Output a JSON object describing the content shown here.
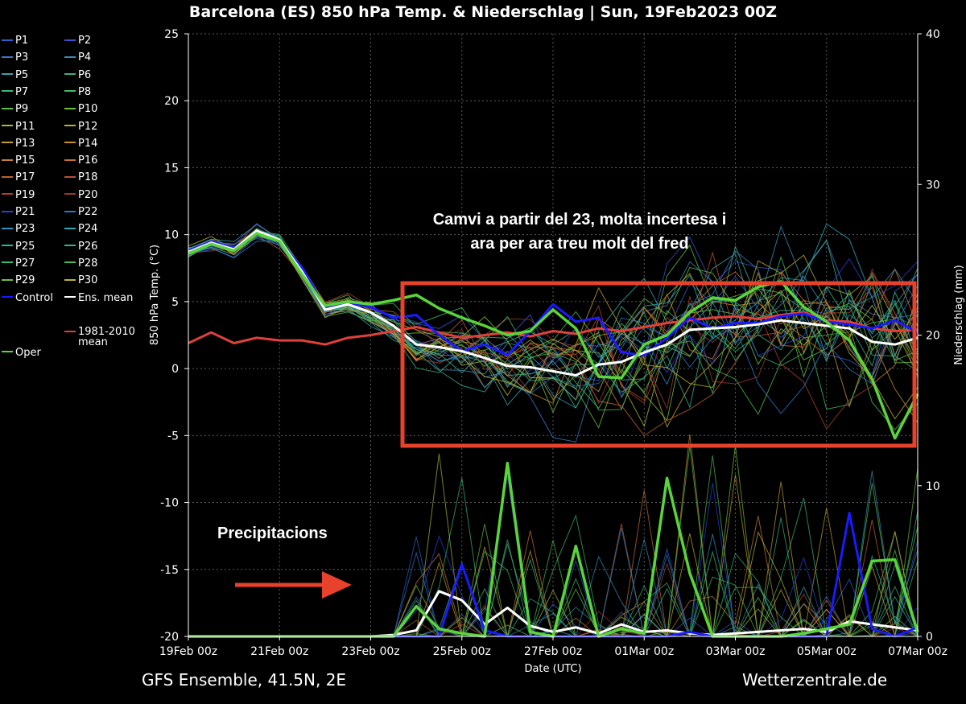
{
  "title": "Barcelona  (ES)  850 hPa Temp. & Niederschlag | Sun, 19Feb2023 00Z",
  "footer_left": "GFS Ensemble, 41.5N, 2E",
  "footer_right": "Wetterzentrale.de",
  "annotation_main": [
    "Camvi a partir del 23, molta incertesa i",
    "ara per ara treu molt del fred"
  ],
  "annotation_precip": "Precipitacions",
  "colors": {
    "background": "#000000",
    "axis": "#ffffff",
    "control": "#1a1aff",
    "ens_mean": "#ffffff",
    "climate_mean": "#e0403a",
    "oper": "#5ad43a",
    "annotation_box": "#e8412c",
    "annotation_arrow": "#e8412c"
  },
  "legend": [
    {
      "label": "P1",
      "color": "#2c5fd0"
    },
    {
      "label": "P2",
      "color": "#3a52c8"
    },
    {
      "label": "P3",
      "color": "#3a78c8"
    },
    {
      "label": "P4",
      "color": "#3a8cb4"
    },
    {
      "label": "P5",
      "color": "#3aa0a8"
    },
    {
      "label": "P6",
      "color": "#3ab08c"
    },
    {
      "label": "P7",
      "color": "#3ab878"
    },
    {
      "label": "P8",
      "color": "#48bc5c"
    },
    {
      "label": "P9",
      "color": "#5ac048"
    },
    {
      "label": "P10",
      "color": "#6cc040"
    },
    {
      "label": "P11",
      "color": "#a8b838"
    },
    {
      "label": "P12",
      "color": "#b8b030"
    },
    {
      "label": "P13",
      "color": "#c0a030"
    },
    {
      "label": "P14",
      "color": "#c89030"
    },
    {
      "label": "P15",
      "color": "#c88030"
    },
    {
      "label": "P16",
      "color": "#c87030"
    },
    {
      "label": "P17",
      "color": "#c06030"
    },
    {
      "label": "P18",
      "color": "#b85030"
    },
    {
      "label": "P19",
      "color": "#a84030"
    },
    {
      "label": "P20",
      "color": "#983830"
    },
    {
      "label": "P21",
      "color": "#2840d8"
    },
    {
      "label": "P22",
      "color": "#2878c8"
    },
    {
      "label": "P23",
      "color": "#3090c0"
    },
    {
      "label": "P24",
      "color": "#30a8b8"
    },
    {
      "label": "P25",
      "color": "#30b498"
    },
    {
      "label": "P26",
      "color": "#34b880"
    },
    {
      "label": "P27",
      "color": "#3cbc68"
    },
    {
      "label": "P28",
      "color": "#4cbc50"
    },
    {
      "label": "P29",
      "color": "#70c040"
    },
    {
      "label": "P30",
      "color": "#c0b430"
    },
    {
      "label": "Control",
      "color": "#1a1aff"
    },
    {
      "label": "Ens. mean",
      "color": "#ffffff"
    },
    {
      "label": "1981-2010\nmean",
      "color": "#e0403a"
    },
    {
      "label": "Oper",
      "color": "#5ad43a"
    }
  ],
  "chart_data": {
    "type": "line",
    "title": "Barcelona  (ES)  850 hPa Temp. & Niederschlag | Sun, 19Feb2023 00Z",
    "xlabel": "Date (UTC)",
    "ylabel": "850 hPa Temp. (°C)",
    "y2label": "Niederschlag (mm)",
    "x_unit": "hours since 19Feb 00z",
    "xlim": [
      0,
      384
    ],
    "ylim": [
      -20,
      25
    ],
    "y2lim": [
      0,
      40
    ],
    "x_ticks": [
      0,
      48,
      96,
      144,
      192,
      240,
      288,
      336,
      384
    ],
    "x_tick_labels": [
      "19Feb 00z",
      "21Feb 00z",
      "23Feb 00z",
      "25Feb 00z",
      "27Feb 00z",
      "01Mar 00z",
      "03Mar 00z",
      "05Mar 00z",
      "07Mar 00z"
    ],
    "y_ticks": [
      25,
      20,
      15,
      10,
      5,
      0,
      -5,
      -10,
      -15,
      -20
    ],
    "y_tick_labels": [
      "25",
      "20",
      "15",
      "10",
      "5",
      "0",
      "-5",
      "-10",
      "-15",
      "-20"
    ],
    "y2_ticks": [
      40,
      30,
      20,
      10,
      0
    ],
    "y2_tick_labels": [
      "40",
      "30",
      "20",
      "10",
      "0"
    ],
    "grid": true,
    "x": [
      0,
      12,
      24,
      36,
      48,
      60,
      72,
      84,
      96,
      108,
      120,
      132,
      144,
      156,
      168,
      180,
      192,
      204,
      216,
      228,
      240,
      252,
      264,
      276,
      288,
      300,
      312,
      324,
      336,
      348,
      360,
      372,
      384
    ],
    "series": [
      {
        "name": "Ens. mean",
        "axis": "temp",
        "color": "#ffffff",
        "width": 3,
        "values": [
          8.7,
          9.4,
          8.9,
          10.3,
          9.6,
          7.2,
          4.4,
          4.8,
          4.2,
          3.2,
          1.8,
          1.6,
          1.3,
          0.8,
          0.2,
          0.1,
          -0.2,
          -0.5,
          0.3,
          0.5,
          1.2,
          1.8,
          2.9,
          3.0,
          3.1,
          3.3,
          3.6,
          3.4,
          3.2,
          3.0,
          2.0,
          1.8,
          2.3
        ]
      },
      {
        "name": "Control",
        "axis": "temp",
        "color": "#1a1aff",
        "width": 3,
        "values": [
          8.8,
          9.5,
          9.0,
          10.2,
          9.5,
          7.5,
          4.6,
          4.9,
          4.6,
          3.8,
          4.0,
          2.5,
          1.3,
          1.8,
          1.0,
          2.8,
          4.8,
          3.5,
          3.8,
          1.2,
          1.0,
          2.3,
          3.8,
          3.0,
          3.4,
          3.4,
          3.9,
          4.1,
          3.5,
          3.3,
          3.0,
          3.6,
          2.7
        ]
      },
      {
        "name": "Oper",
        "axis": "temp",
        "color": "#5ad43a",
        "width": 3.5,
        "values": [
          8.6,
          9.3,
          8.8,
          10.1,
          9.5,
          7.0,
          4.7,
          5.0,
          4.8,
          5.1,
          5.5,
          4.5,
          3.8,
          3.2,
          2.5,
          2.8,
          4.4,
          3.0,
          -0.6,
          -0.7,
          1.8,
          2.5,
          4.2,
          5.3,
          5.1,
          6.1,
          6.5,
          4.6,
          3.5,
          2.1,
          -0.8,
          -5.2,
          -1.9
        ]
      },
      {
        "name": "1981-2010 mean",
        "axis": "temp",
        "color": "#e0403a",
        "width": 3,
        "values": [
          1.9,
          2.7,
          1.9,
          2.3,
          2.1,
          2.1,
          1.8,
          2.3,
          2.5,
          2.8,
          3.1,
          2.7,
          2.3,
          2.5,
          2.7,
          2.4,
          2.8,
          2.6,
          3.0,
          2.8,
          3.1,
          3.4,
          3.6,
          3.8,
          3.9,
          3.7,
          4.0,
          4.2,
          3.6,
          3.5,
          3.0,
          2.8,
          2.9
        ]
      },
      {
        "name": "Ens. mean precip",
        "axis": "precip",
        "color": "#ffffff",
        "width": 3,
        "values": [
          0,
          0,
          0,
          0,
          0,
          0,
          0,
          0,
          0,
          0.1,
          0.4,
          3.0,
          2.4,
          0.8,
          1.9,
          0.7,
          0.3,
          0.6,
          0.2,
          0.8,
          0.3,
          0.4,
          0.2,
          0.1,
          0.2,
          0.3,
          0.4,
          0.5,
          0.3,
          1.0,
          0.8,
          0.6,
          0.4
        ]
      },
      {
        "name": "Oper precip",
        "axis": "precip",
        "color": "#5ad43a",
        "width": 3.5,
        "values": [
          0,
          0,
          0,
          0,
          0,
          0,
          0,
          0,
          0,
          0,
          2.0,
          0.5,
          0.2,
          0,
          11.5,
          0.3,
          0,
          6.0,
          0,
          0.5,
          0.2,
          10.5,
          4.2,
          0,
          0,
          0,
          0,
          0.2,
          0.5,
          0.8,
          5.0,
          5.1,
          0.3
        ]
      },
      {
        "name": "Control precip",
        "axis": "precip",
        "color": "#1a1aff",
        "width": 3,
        "values": [
          0,
          0,
          0,
          0,
          0,
          0,
          0,
          0,
          0,
          0,
          0,
          0,
          4.8,
          0.4,
          0,
          0,
          0,
          0,
          0,
          0,
          0,
          0,
          0.3,
          0,
          0,
          0,
          0,
          0,
          0,
          8.2,
          0.5,
          0,
          0.6
        ]
      }
    ],
    "members_note": "30 ensemble members (P1-P30) shown as thin lines spreading between about -5 and 10 °C after 23 Feb"
  }
}
